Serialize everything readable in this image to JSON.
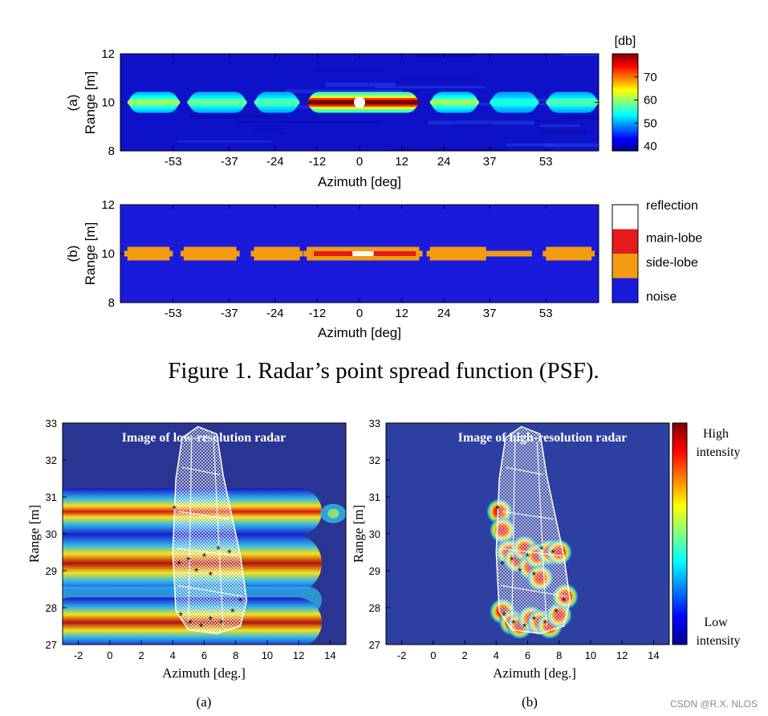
{
  "figure1": {
    "caption": "Figure 1. Radar’s point spread function (PSF).",
    "panel_a": {
      "tag": "(a)",
      "chart_type": "heatmap",
      "ylabel": "Range [m]",
      "xlabel": "Azimuth [deg]",
      "xlim": [
        -68,
        68
      ],
      "ylim": [
        8,
        12
      ],
      "xticks": [
        -53,
        -37,
        -24,
        -12,
        0,
        12,
        24,
        37,
        53
      ],
      "yticks": [
        8,
        10,
        12
      ],
      "response_range_m": 10,
      "target_azimuth_deg": 0,
      "lobes": [
        {
          "from": -66,
          "to": -51,
          "level_db": 60
        },
        {
          "from": -49,
          "to": -32,
          "level_db": 58
        },
        {
          "from": -30,
          "to": -17,
          "level_db": 57
        },
        {
          "from": -15,
          "to": 17,
          "level_db": 80
        },
        {
          "from": 20,
          "to": 34,
          "level_db": 60
        },
        {
          "from": 37,
          "to": 51,
          "level_db": 55
        },
        {
          "from": 53,
          "to": 68,
          "level_db": 57
        }
      ],
      "colorbar": {
        "title": "[db]",
        "ticks": [
          40,
          50,
          60,
          70
        ],
        "min": 38,
        "max": 80
      }
    },
    "panel_b": {
      "tag": "(b)",
      "chart_type": "heatmap",
      "ylabel": "Range [m]",
      "xlabel": "Azimuth [deg]",
      "xlim": [
        -68,
        68
      ],
      "ylim": [
        8,
        12
      ],
      "xticks": [
        -53,
        -37,
        -24,
        -12,
        0,
        12,
        24,
        37,
        53
      ],
      "yticks": [
        8,
        10,
        12
      ],
      "side_lobes": [
        {
          "from": -66,
          "to": -54
        },
        {
          "from": -50,
          "to": -35
        },
        {
          "from": -30,
          "to": -17
        },
        {
          "from": -15,
          "to": 17
        },
        {
          "from": 20,
          "to": 36
        },
        {
          "from": 36,
          "to": 49
        },
        {
          "from": 53,
          "to": 66
        }
      ],
      "main_lobe": {
        "from": -13,
        "to": 16
      },
      "reflection": {
        "from": -2,
        "to": 4
      },
      "legend": [
        "reflection",
        "main-lobe",
        "side-lobe",
        "noise"
      ],
      "legend_colors": [
        "#ffffff",
        "#e41a1c",
        "#f39c12",
        "#1a1adb"
      ]
    }
  },
  "figure2": {
    "panel_a": {
      "tag": "(a)",
      "title": "Image of low-resolution radar",
      "chart_type": "heatmap",
      "xlabel": "Azimuth [deg.]",
      "ylabel": "Range [m]",
      "xlim": [
        -3,
        15
      ],
      "ylim": [
        27,
        33
      ],
      "xticks": [
        -2,
        0,
        2,
        4,
        6,
        8,
        10,
        12,
        14
      ],
      "yticks": [
        27,
        28,
        29,
        30,
        31,
        32,
        33
      ],
      "bands": [
        {
          "range_m": 30.6,
          "intensity": 0.9
        },
        {
          "range_m": 29.2,
          "intensity": 1.0
        },
        {
          "range_m": 28.2,
          "intensity": 0.55
        },
        {
          "range_m": 27.6,
          "intensity": 0.95
        }
      ]
    },
    "panel_b": {
      "tag": "(b)",
      "title": "Image of high-resolution radar",
      "chart_type": "heatmap",
      "xlabel": "Azimuth [deg.]",
      "ylabel": "Range [m]",
      "xlim": [
        -3,
        15
      ],
      "ylim": [
        27,
        33
      ],
      "xticks": [
        -2,
        0,
        2,
        4,
        6,
        8,
        10,
        12,
        14
      ],
      "yticks": [
        27,
        28,
        29,
        30,
        31,
        32,
        33
      ],
      "blobs": [
        [
          4.2,
          30.6
        ],
        [
          4.4,
          30.1
        ],
        [
          4.8,
          29.5
        ],
        [
          5.3,
          29.3
        ],
        [
          5.8,
          29.6
        ],
        [
          6.2,
          29.1
        ],
        [
          6.6,
          29.4
        ],
        [
          7.4,
          29.5
        ],
        [
          8.0,
          29.5
        ],
        [
          6.8,
          28.8
        ],
        [
          4.4,
          27.9
        ],
        [
          5.0,
          27.6
        ],
        [
          5.5,
          27.5
        ],
        [
          6.2,
          27.7
        ],
        [
          6.8,
          27.6
        ],
        [
          7.4,
          27.5
        ],
        [
          8.0,
          27.8
        ],
        [
          8.4,
          28.3
        ]
      ],
      "colorbar": {
        "high": "High",
        "high2": "intensity",
        "low": "Low",
        "low2": "intensity"
      }
    }
  },
  "watermark": "CSDN @R.X. NLOS"
}
